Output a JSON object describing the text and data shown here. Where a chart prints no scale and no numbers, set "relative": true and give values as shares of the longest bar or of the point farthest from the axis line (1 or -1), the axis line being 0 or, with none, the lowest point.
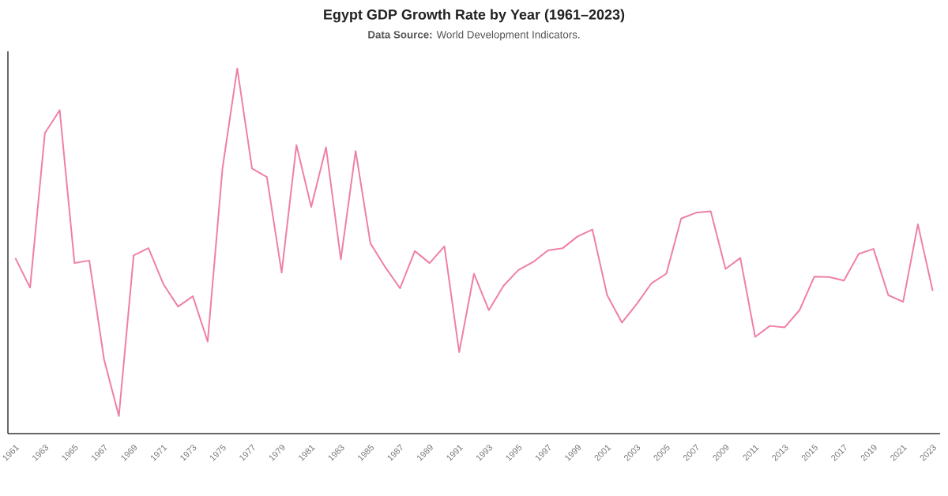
{
  "chart_data": {
    "type": "line",
    "title": "Egypt GDP Growth Rate by Year (1961–2023)",
    "subtitle": "**Data Source:** World Development Indicators.",
    "relative": true,
    "color": "#ef7fa9",
    "categories": [
      "1961",
      null,
      "1963",
      null,
      "1965",
      null,
      "1967",
      null,
      "1969",
      null,
      "1971",
      null,
      "1973",
      null,
      "1975",
      null,
      "1977",
      null,
      "1979",
      null,
      "1981",
      null,
      "1983",
      null,
      "1985",
      null,
      "1987",
      null,
      "1989",
      null,
      "1991",
      null,
      "1993",
      null,
      "1995",
      null,
      "1997",
      null,
      "1999",
      null,
      "2001",
      null,
      "2003",
      null,
      "2005",
      null,
      "2007",
      null,
      "2009",
      null,
      "2011",
      null,
      "2013",
      null,
      "2015",
      null,
      "2017",
      null,
      "2019",
      null,
      "2021",
      null,
      "2023"
    ],
    "values": [
      0.481,
      0.4,
      0.823,
      0.886,
      0.467,
      0.474,
      0.203,
      0.048,
      0.488,
      0.508,
      0.41,
      0.348,
      0.376,
      0.252,
      0.726,
      1,
      0.726,
      0.703,
      0.441,
      0.79,
      0.621,
      0.784,
      0.477,
      0.774,
      0.521,
      0.456,
      0.398,
      0.5,
      0.467,
      0.513,
      0.223,
      0.438,
      0.338,
      0.405,
      0.448,
      0.47,
      0.502,
      0.508,
      0.54,
      0.559,
      0.379,
      0.304,
      0.355,
      0.412,
      0.438,
      0.589,
      0.605,
      0.609,
      0.451,
      0.481,
      0.265,
      0.295,
      0.291,
      0.338,
      0.43,
      0.429,
      0.419,
      0.492,
      0.506,
      0.379,
      0.361,
      0.573,
      0.391
    ]
  }
}
